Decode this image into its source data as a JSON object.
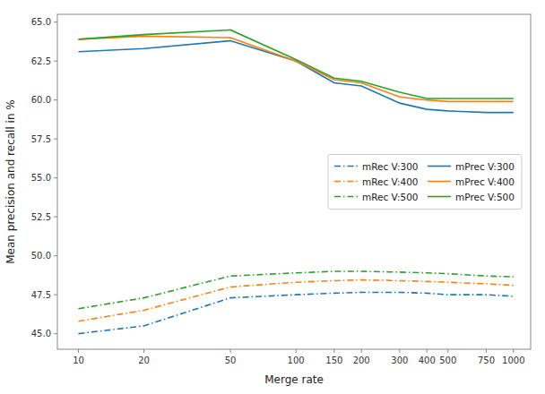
{
  "chart_data": {
    "type": "line",
    "xlabel": "Merge rate",
    "ylabel": "Mean precision and recall in %",
    "log": "x",
    "grid": false,
    "legend": "right",
    "x": [
      10,
      20,
      50,
      100,
      150,
      200,
      300,
      400,
      500,
      750,
      1000
    ],
    "xlim": [
      8,
      1200
    ],
    "xticks": [
      10,
      20,
      50,
      100,
      150,
      200,
      300,
      400,
      500,
      750,
      1000
    ],
    "ylim": [
      44.0,
      65.5
    ],
    "yticks": [
      {
        "value": 45,
        "label": "45.0"
      },
      47.5,
      {
        "value": 50,
        "label": "50.0"
      },
      52.5,
      {
        "value": 55,
        "label": "55.0"
      },
      57.5,
      {
        "value": 60,
        "label": "60.0"
      },
      62.5,
      {
        "value": 65,
        "label": "65.0"
      }
    ],
    "series": [
      {
        "name": "mRec V:300",
        "color": "#1f77b4",
        "line_style": "dashdot",
        "values": [
          45.0,
          45.5,
          47.3,
          47.5,
          47.6,
          47.65,
          47.65,
          47.6,
          47.5,
          47.5,
          47.4
        ]
      },
      {
        "name": "mPrec V:300",
        "color": "#1f77b4",
        "line_style": "solid",
        "values": [
          63.1,
          63.3,
          63.8,
          62.5,
          61.1,
          60.9,
          59.8,
          59.4,
          59.3,
          59.2,
          59.2
        ]
      },
      {
        "name": "mRec V:400",
        "color": "#ff7f0e",
        "line_style": "dashdot",
        "values": [
          45.8,
          46.5,
          48.0,
          48.3,
          48.4,
          48.45,
          48.4,
          48.35,
          48.3,
          48.2,
          48.1
        ]
      },
      {
        "name": "mPrec V:400",
        "color": "#ff7f0e",
        "line_style": "solid",
        "values": [
          63.9,
          64.1,
          64.0,
          62.5,
          61.3,
          61.1,
          60.2,
          60.0,
          59.9,
          59.9,
          59.9
        ]
      },
      {
        "name": "mRec V:500",
        "color": "#2ca02c",
        "line_style": "dashdot",
        "values": [
          46.6,
          47.3,
          48.7,
          48.9,
          49.0,
          49.0,
          48.95,
          48.9,
          48.85,
          48.7,
          48.65
        ]
      },
      {
        "name": "mPrec V:500",
        "color": "#2ca02c",
        "line_style": "solid",
        "values": [
          63.9,
          64.2,
          64.5,
          62.6,
          61.4,
          61.2,
          60.5,
          60.1,
          60.1,
          60.1,
          60.1
        ]
      }
    ]
  }
}
